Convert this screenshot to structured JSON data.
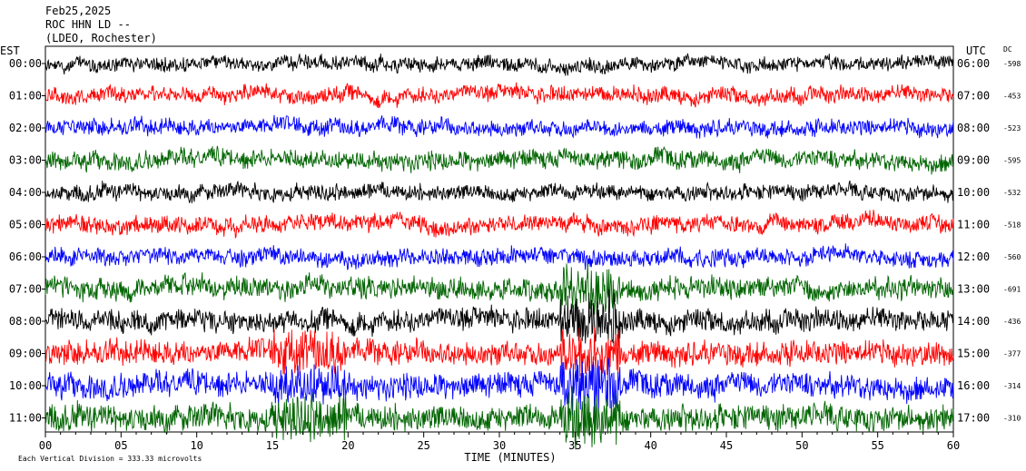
{
  "header": {
    "date": "Feb25,2025",
    "station": "ROC HHN LD --",
    "network": "(LDEO, Rochester)"
  },
  "left_axis_title": "EST",
  "right_axis_title": "UTC",
  "dc_title": "DC",
  "footer": {
    "scale_text": "Each Vertical Division =  333.33 microvolts"
  },
  "chart_data": {
    "type": "line",
    "title": "",
    "xlabel": "TIME (MINUTES)",
    "ylabel": "",
    "xlim": [
      0,
      60
    ],
    "x_ticks": [
      "00",
      "05",
      "10",
      "15",
      "20",
      "25",
      "30",
      "35",
      "40",
      "45",
      "50",
      "55",
      "60"
    ],
    "trace_colors": [
      "#000000",
      "#ff0000",
      "#0000ff",
      "#006400"
    ],
    "rows": [
      {
        "est": "00:00",
        "utc": "06:00",
        "dc": "-598",
        "color": "#000000",
        "amp": 0.55
      },
      {
        "est": "01:00",
        "utc": "07:00",
        "dc": "-453",
        "color": "#ff0000",
        "amp": 0.6
      },
      {
        "est": "02:00",
        "utc": "08:00",
        "dc": "-523",
        "color": "#0000ff",
        "amp": 0.6
      },
      {
        "est": "03:00",
        "utc": "09:00",
        "dc": "-595",
        "color": "#006400",
        "amp": 0.7
      },
      {
        "est": "04:00",
        "utc": "10:00",
        "dc": "-532",
        "color": "#000000",
        "amp": 0.6
      },
      {
        "est": "05:00",
        "utc": "11:00",
        "dc": "-518",
        "color": "#ff0000",
        "amp": 0.65
      },
      {
        "est": "06:00",
        "utc": "12:00",
        "dc": "-560",
        "color": "#0000ff",
        "amp": 0.65
      },
      {
        "est": "07:00",
        "utc": "13:00",
        "dc": "-691",
        "color": "#006400",
        "amp": 0.8
      },
      {
        "est": "08:00",
        "utc": "14:00",
        "dc": "-436",
        "color": "#000000",
        "amp": 0.85
      },
      {
        "est": "09:00",
        "utc": "15:00",
        "dc": "-377",
        "color": "#ff0000",
        "amp": 0.9
      },
      {
        "est": "10:00",
        "utc": "16:00",
        "dc": "-314",
        "color": "#0000ff",
        "amp": 0.95
      },
      {
        "est": "11:00",
        "utc": "17:00",
        "dc": "-310",
        "color": "#006400",
        "amp": 1.0
      }
    ]
  }
}
